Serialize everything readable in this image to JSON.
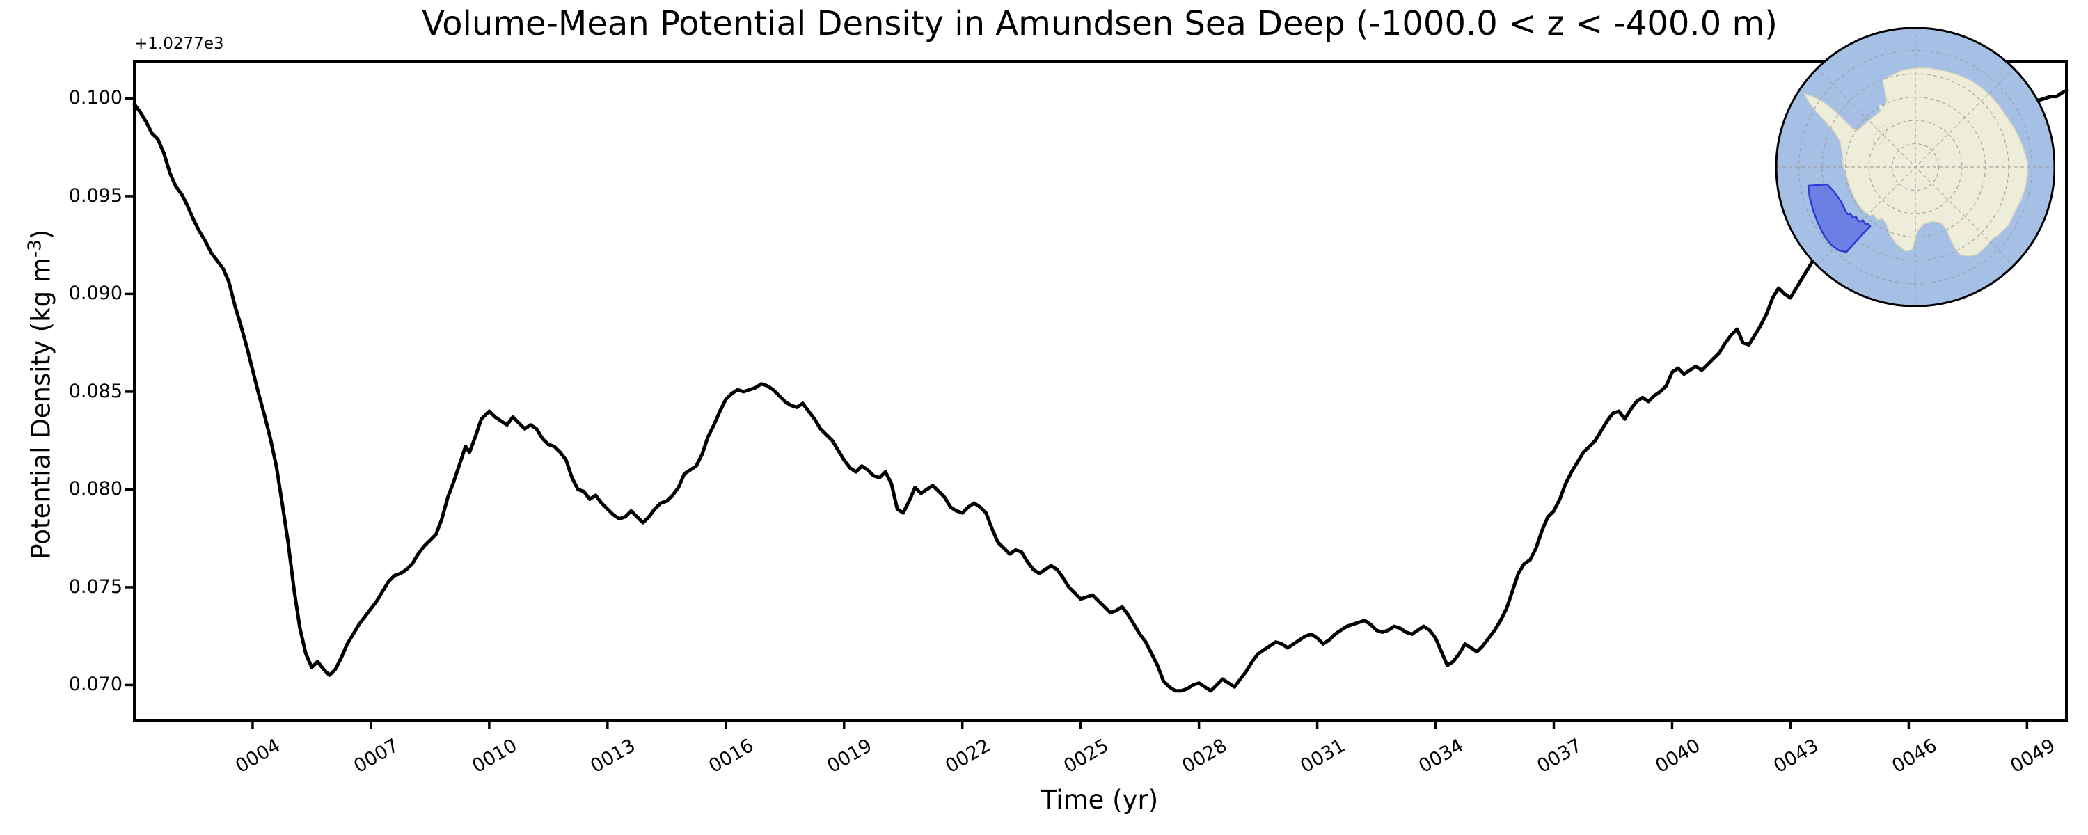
{
  "title": "Volume-Mean Potential Density in Amundsen Sea Deep (-1000.0 < z < -400.0 m)",
  "axes": {
    "xlabel": "Time (yr)",
    "ylabel_main": "Potential Density (kg m",
    "ylabel_sup": "-3",
    "ylabel_close": ")",
    "offset_text": "+1.0277e3"
  },
  "map": {
    "name": "antarctica-inset-map",
    "highlight_region": "Amundsen Sea sector",
    "colors": {
      "ocean": "#a5c0e4",
      "land": "#eeedd9",
      "land_edge": "#d9d7bd",
      "graticule": "#9a9a9a",
      "highlight_fill": "#4558e3",
      "highlight_fill_opacity": "0.62",
      "highlight_edge": "#2d3ad0",
      "boundary_edge": "#000000"
    }
  },
  "chart_data": {
    "type": "line",
    "title": "Volume-Mean Potential Density in Amundsen Sea Deep (-1000.0 < z < -400.0 m)",
    "xlabel": "Time (yr)",
    "ylabel": "Potential Density (kg m^-3)",
    "y_offset_text": "+1.0277e3",
    "y_offset_value": 1027.7,
    "line_color": "#000000",
    "line_width": 5,
    "grid": false,
    "legend": "none",
    "xlim": [
      1,
      50
    ],
    "ylim": [
      0.0682,
      0.1019
    ],
    "xticks": [
      {
        "label": "0004",
        "value": 4
      },
      {
        "label": "0007",
        "value": 7
      },
      {
        "label": "0010",
        "value": 10
      },
      {
        "label": "0013",
        "value": 13
      },
      {
        "label": "0016",
        "value": 16
      },
      {
        "label": "0019",
        "value": 19
      },
      {
        "label": "0022",
        "value": 22
      },
      {
        "label": "0025",
        "value": 25
      },
      {
        "label": "0028",
        "value": 28
      },
      {
        "label": "0031",
        "value": 31
      },
      {
        "label": "0034",
        "value": 34
      },
      {
        "label": "0037",
        "value": 37
      },
      {
        "label": "0040",
        "value": 40
      },
      {
        "label": "0043",
        "value": 43
      },
      {
        "label": "0046",
        "value": 46
      },
      {
        "label": "0049",
        "value": 49
      }
    ],
    "yticks": [
      {
        "label": "0.100",
        "value": 0.1
      },
      {
        "label": "0.095",
        "value": 0.095
      },
      {
        "label": "0.090",
        "value": 0.09
      },
      {
        "label": "0.085",
        "value": 0.085
      },
      {
        "label": "0.080",
        "value": 0.08
      },
      {
        "label": "0.075",
        "value": 0.075
      },
      {
        "label": "0.070",
        "value": 0.07
      }
    ],
    "x": [
      1.0,
      1.15,
      1.3,
      1.45,
      1.6,
      1.75,
      1.9,
      2.05,
      2.2,
      2.35,
      2.5,
      2.65,
      2.8,
      2.95,
      3.1,
      3.25,
      3.4,
      3.55,
      3.7,
      3.85,
      4.0,
      4.15,
      4.3,
      4.45,
      4.6,
      4.75,
      4.9,
      5.05,
      5.2,
      5.35,
      5.5,
      5.65,
      5.8,
      5.95,
      6.1,
      6.25,
      6.4,
      6.55,
      6.7,
      6.85,
      7.0,
      7.15,
      7.3,
      7.45,
      7.6,
      7.75,
      7.9,
      8.05,
      8.2,
      8.35,
      8.5,
      8.65,
      8.8,
      8.95,
      9.1,
      9.25,
      9.4,
      9.5,
      9.65,
      9.8,
      10.0,
      10.15,
      10.3,
      10.45,
      10.6,
      10.75,
      10.9,
      11.05,
      11.2,
      11.35,
      11.5,
      11.65,
      11.8,
      11.95,
      12.1,
      12.25,
      12.4,
      12.55,
      12.7,
      12.85,
      13.0,
      13.15,
      13.3,
      13.45,
      13.6,
      13.75,
      13.9,
      14.05,
      14.2,
      14.35,
      14.5,
      14.65,
      14.8,
      14.95,
      15.1,
      15.25,
      15.4,
      15.55,
      15.7,
      15.85,
      16.0,
      16.15,
      16.3,
      16.45,
      16.6,
      16.75,
      16.9,
      17.05,
      17.2,
      17.35,
      17.5,
      17.65,
      17.8,
      17.95,
      18.1,
      18.25,
      18.4,
      18.55,
      18.7,
      18.85,
      19.0,
      19.15,
      19.3,
      19.45,
      19.6,
      19.75,
      19.9,
      20.05,
      20.2,
      20.35,
      20.5,
      20.65,
      20.8,
      20.95,
      21.1,
      21.25,
      21.4,
      21.55,
      21.7,
      21.85,
      22.0,
      22.15,
      22.3,
      22.45,
      22.6,
      22.75,
      22.9,
      23.05,
      23.2,
      23.35,
      23.5,
      23.65,
      23.8,
      23.95,
      24.1,
      24.25,
      24.4,
      24.55,
      24.7,
      24.85,
      25.0,
      25.15,
      25.3,
      25.45,
      25.6,
      25.75,
      25.9,
      26.05,
      26.2,
      26.35,
      26.5,
      26.65,
      26.8,
      26.95,
      27.1,
      27.25,
      27.4,
      27.55,
      27.7,
      27.85,
      28.0,
      28.15,
      28.3,
      28.45,
      28.6,
      28.75,
      28.9,
      29.05,
      29.2,
      29.35,
      29.5,
      29.65,
      29.8,
      29.95,
      30.1,
      30.25,
      30.4,
      30.55,
      30.7,
      30.85,
      31.0,
      31.15,
      31.3,
      31.45,
      31.6,
      31.75,
      31.9,
      32.05,
      32.2,
      32.35,
      32.5,
      32.65,
      32.8,
      32.95,
      33.1,
      33.25,
      33.4,
      33.55,
      33.7,
      33.85,
      34.0,
      34.15,
      34.3,
      34.45,
      34.6,
      34.75,
      34.9,
      35.05,
      35.2,
      35.35,
      35.5,
      35.65,
      35.8,
      35.95,
      36.1,
      36.25,
      36.4,
      36.55,
      36.7,
      36.85,
      37.0,
      37.15,
      37.3,
      37.45,
      37.6,
      37.75,
      37.9,
      38.05,
      38.2,
      38.35,
      38.5,
      38.65,
      38.8,
      38.95,
      39.1,
      39.25,
      39.4,
      39.55,
      39.7,
      39.85,
      40.0,
      40.15,
      40.3,
      40.45,
      40.6,
      40.75,
      40.9,
      41.05,
      41.2,
      41.35,
      41.5,
      41.65,
      41.8,
      41.95,
      42.1,
      42.25,
      42.4,
      42.55,
      42.7,
      42.85,
      43.0,
      43.15,
      43.3,
      43.45,
      43.6,
      43.8,
      44.0,
      44.2,
      44.4,
      44.6,
      44.8,
      45.0,
      45.2,
      45.4,
      45.6,
      45.8,
      46.0,
      46.2,
      46.4,
      46.6,
      46.8,
      47.0,
      47.2,
      47.4,
      47.6,
      47.8,
      48.0,
      48.2,
      48.4,
      48.6,
      48.8,
      49.0,
      49.15,
      49.3,
      49.45,
      49.6,
      49.75,
      49.9,
      50.0
    ],
    "y": [
      0.0997,
      0.0993,
      0.0988,
      0.0982,
      0.0979,
      0.0972,
      0.0962,
      0.0955,
      0.0951,
      0.0945,
      0.0938,
      0.0932,
      0.0927,
      0.0921,
      0.0917,
      0.0913,
      0.0906,
      0.0894,
      0.0884,
      0.0873,
      0.0861,
      0.0849,
      0.0838,
      0.0826,
      0.0812,
      0.0793,
      0.0773,
      0.0749,
      0.0729,
      0.0716,
      0.0709,
      0.0712,
      0.0708,
      0.0705,
      0.0708,
      0.0714,
      0.0721,
      0.0726,
      0.0731,
      0.0735,
      0.0739,
      0.0743,
      0.0748,
      0.0753,
      0.0756,
      0.0757,
      0.0759,
      0.0762,
      0.0767,
      0.0771,
      0.0774,
      0.0777,
      0.0785,
      0.0796,
      0.0804,
      0.0813,
      0.0822,
      0.0819,
      0.0827,
      0.0836,
      0.084,
      0.0837,
      0.0835,
      0.0833,
      0.0837,
      0.0834,
      0.0831,
      0.0833,
      0.0831,
      0.0826,
      0.0823,
      0.0822,
      0.0819,
      0.0815,
      0.0806,
      0.08,
      0.0799,
      0.0795,
      0.0797,
      0.0793,
      0.079,
      0.0787,
      0.0785,
      0.0786,
      0.0789,
      0.0786,
      0.0783,
      0.0786,
      0.079,
      0.0793,
      0.0794,
      0.0797,
      0.0801,
      0.0808,
      0.081,
      0.0812,
      0.0818,
      0.0827,
      0.0833,
      0.084,
      0.0846,
      0.0849,
      0.0851,
      0.085,
      0.0851,
      0.0852,
      0.0854,
      0.0853,
      0.0851,
      0.0848,
      0.0845,
      0.0843,
      0.0842,
      0.0844,
      0.084,
      0.0836,
      0.0831,
      0.0828,
      0.0825,
      0.082,
      0.0815,
      0.0811,
      0.0809,
      0.0812,
      0.081,
      0.0807,
      0.0806,
      0.0809,
      0.0803,
      0.079,
      0.0788,
      0.0794,
      0.0801,
      0.0798,
      0.08,
      0.0802,
      0.0799,
      0.0796,
      0.0791,
      0.0789,
      0.0788,
      0.0791,
      0.0793,
      0.0791,
      0.0788,
      0.078,
      0.0773,
      0.077,
      0.0767,
      0.0769,
      0.0768,
      0.0763,
      0.0759,
      0.0757,
      0.0759,
      0.0761,
      0.0759,
      0.0755,
      0.075,
      0.0747,
      0.0744,
      0.0745,
      0.0746,
      0.0743,
      0.074,
      0.0737,
      0.0738,
      0.074,
      0.0736,
      0.0731,
      0.0726,
      0.0722,
      0.0716,
      0.071,
      0.0702,
      0.0699,
      0.0697,
      0.0697,
      0.0698,
      0.07,
      0.0701,
      0.0699,
      0.0697,
      0.07,
      0.0703,
      0.0701,
      0.0699,
      0.0703,
      0.0707,
      0.0712,
      0.0716,
      0.0718,
      0.072,
      0.0722,
      0.0721,
      0.0719,
      0.0721,
      0.0723,
      0.0725,
      0.0726,
      0.0724,
      0.0721,
      0.0723,
      0.0726,
      0.0728,
      0.073,
      0.0731,
      0.0732,
      0.0733,
      0.0731,
      0.0728,
      0.0727,
      0.0728,
      0.073,
      0.0729,
      0.0727,
      0.0726,
      0.0728,
      0.073,
      0.0728,
      0.0724,
      0.0717,
      0.071,
      0.0712,
      0.0716,
      0.0721,
      0.0719,
      0.0717,
      0.072,
      0.0724,
      0.0728,
      0.0733,
      0.0739,
      0.0748,
      0.0757,
      0.0762,
      0.0764,
      0.077,
      0.0779,
      0.0786,
      0.0789,
      0.0795,
      0.0803,
      0.0809,
      0.0814,
      0.0819,
      0.0822,
      0.0825,
      0.083,
      0.0835,
      0.0839,
      0.084,
      0.0836,
      0.0841,
      0.0845,
      0.0847,
      0.0845,
      0.0848,
      0.085,
      0.0853,
      0.086,
      0.0862,
      0.0859,
      0.0861,
      0.0863,
      0.0861,
      0.0864,
      0.0867,
      0.087,
      0.0875,
      0.0879,
      0.0882,
      0.0875,
      0.0874,
      0.0879,
      0.0884,
      0.089,
      0.0898,
      0.0903,
      0.09,
      0.0898,
      0.0903,
      0.0908,
      0.0913,
      0.0918,
      0.0923,
      0.0928,
      0.0932,
      0.0936,
      0.094,
      0.0943,
      0.0947,
      0.095,
      0.0953,
      0.0956,
      0.0959,
      0.0962,
      0.0965,
      0.0968,
      0.0971,
      0.0974,
      0.0977,
      0.0979,
      0.0982,
      0.0985,
      0.0988,
      0.099,
      0.0992,
      0.0994,
      0.0996,
      0.0998,
      0.0999,
      0.1,
      0.0999,
      0.1,
      0.1001,
      0.1001,
      0.1003,
      0.1004
    ]
  }
}
